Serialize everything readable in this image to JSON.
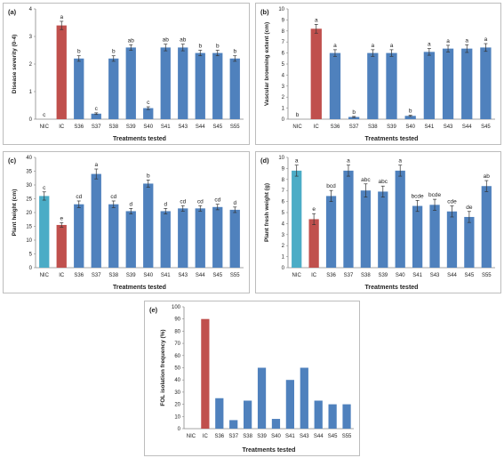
{
  "colors": {
    "bar": "#4f81bd",
    "ic": "#c0504d",
    "nic": "#4bacc6",
    "err": "#333333"
  },
  "chart_data": [
    {
      "panel": "(a)",
      "type": "bar",
      "categories": [
        "NIC",
        "IC",
        "S36",
        "S37",
        "S38",
        "S39",
        "S40",
        "S41",
        "S43",
        "S44",
        "S45",
        "S55"
      ],
      "values": [
        0,
        3.4,
        2.2,
        0.2,
        2.2,
        2.6,
        0.4,
        2.6,
        2.6,
        2.4,
        2.4,
        2.2
      ],
      "errors": [
        0,
        0.15,
        0.1,
        0.03,
        0.1,
        0.1,
        0.05,
        0.12,
        0.12,
        0.1,
        0.1,
        0.1
      ],
      "labels": [
        "c",
        "a",
        "b",
        "c",
        "b",
        "ab",
        "c",
        "ab",
        "ab",
        "b",
        "b",
        "b"
      ],
      "ylabel": "Disease severity (0-4)",
      "xlabel": "Treatments tested",
      "ylim": [
        0,
        4
      ],
      "yticks": [
        0,
        1,
        2,
        3,
        4
      ]
    },
    {
      "panel": "(b)",
      "type": "bar",
      "categories": [
        "NIC",
        "IC",
        "S36",
        "S37",
        "S38",
        "S39",
        "S40",
        "S41",
        "S43",
        "S44",
        "S45"
      ],
      "values": [
        0,
        8.2,
        6.0,
        0.2,
        6.0,
        6.0,
        0.3,
        6.1,
        6.4,
        6.4,
        6.5
      ],
      "errors": [
        0,
        0.4,
        0.3,
        0.05,
        0.3,
        0.3,
        0.05,
        0.3,
        0.3,
        0.35,
        0.35
      ],
      "labels": [
        "b",
        "a",
        "a",
        "b",
        "a",
        "a",
        "b",
        "a",
        "a",
        "a",
        "a"
      ],
      "ylabel": "Vascular browning extent (cm)",
      "xlabel": "Treatments tested",
      "ylim": [
        0,
        10
      ],
      "yticks": [
        0,
        1,
        2,
        3,
        4,
        5,
        6,
        7,
        8,
        9,
        10
      ]
    },
    {
      "panel": "(c)",
      "type": "bar",
      "categories": [
        "NIC",
        "IC",
        "S36",
        "S37",
        "S38",
        "S39",
        "S40",
        "S41",
        "S43",
        "S44",
        "S45",
        "S55"
      ],
      "values": [
        26,
        15.5,
        23,
        34,
        23,
        20.5,
        30.5,
        20.5,
        21.5,
        21.5,
        22,
        21
      ],
      "errors": [
        1.5,
        0.8,
        1.2,
        1.8,
        1.2,
        1.0,
        1.3,
        1.0,
        1.0,
        1.0,
        1.0,
        1.0
      ],
      "labels": [
        "c",
        "e",
        "cd",
        "a",
        "cd",
        "d",
        "b",
        "d",
        "cd",
        "cd",
        "cd",
        "d"
      ],
      "ylabel": "Plant height (cm)",
      "xlabel": "Treatments tested",
      "ylim": [
        0,
        40
      ],
      "yticks": [
        0,
        5,
        10,
        15,
        20,
        25,
        30,
        35,
        40
      ]
    },
    {
      "panel": "(d)",
      "type": "bar",
      "categories": [
        "NIC",
        "IC",
        "S36",
        "S37",
        "S38",
        "S39",
        "S40",
        "S41",
        "S43",
        "S44",
        "S45",
        "S55"
      ],
      "values": [
        8.8,
        4.4,
        6.5,
        8.8,
        7.0,
        6.9,
        8.8,
        5.6,
        5.7,
        5.1,
        4.6,
        7.4
      ],
      "errors": [
        0.5,
        0.5,
        0.5,
        0.5,
        0.6,
        0.5,
        0.5,
        0.5,
        0.5,
        0.5,
        0.5,
        0.5
      ],
      "labels": [
        "a",
        "e",
        "bcd",
        "a",
        "abc",
        "abc",
        "a",
        "bcde",
        "bcde",
        "cde",
        "de",
        "ab"
      ],
      "ylabel": "Plant fresh weight (g)",
      "xlabel": "Treatments tested",
      "ylim": [
        0,
        10
      ],
      "yticks": [
        0,
        1,
        2,
        3,
        4,
        5,
        6,
        7,
        8,
        9,
        10
      ]
    },
    {
      "panel": "(e)",
      "type": "bar",
      "categories": [
        "NIC",
        "IC",
        "S36",
        "S37",
        "S38",
        "S39",
        "S40",
        "S41",
        "S43",
        "S44",
        "S45",
        "S55"
      ],
      "values": [
        0,
        90,
        25,
        7,
        23,
        50,
        8,
        40,
        50,
        23,
        20,
        20
      ],
      "errors": [
        0,
        0,
        0,
        0,
        0,
        0,
        0,
        0,
        0,
        0,
        0,
        0
      ],
      "labels": [
        "",
        "",
        "",
        "",
        "",
        "",
        "",
        "",
        "",
        "",
        "",
        ""
      ],
      "ylabel": "FOL isolation frequency (%)",
      "xlabel": "Treatments tested",
      "ylim": [
        0,
        100
      ],
      "yticks": [
        0,
        10,
        20,
        30,
        40,
        50,
        60,
        70,
        80,
        90,
        100
      ]
    }
  ]
}
